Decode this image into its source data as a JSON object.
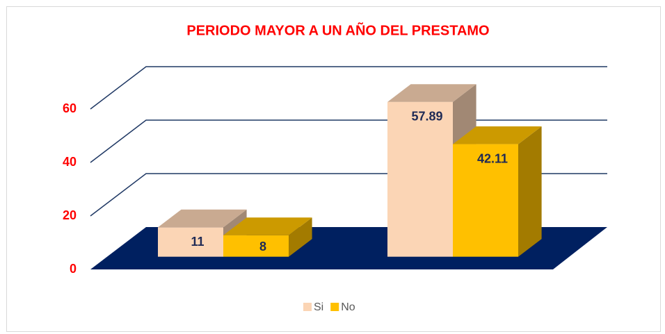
{
  "chart_data": {
    "type": "bar3d",
    "title": "PERIODO MAYOR A UN AÑO DEL PRESTAMO",
    "categories": [
      null,
      null
    ],
    "series": [
      {
        "name": "Si",
        "color": "#fbd5b5",
        "values": [
          11,
          57.89
        ]
      },
      {
        "name": "No",
        "color": "#ffc000",
        "values": [
          8,
          42.11
        ]
      }
    ],
    "ylim": [
      0,
      60
    ],
    "yticks": [
      0,
      20,
      40,
      60
    ],
    "grid": true,
    "legend": "bottom"
  }
}
